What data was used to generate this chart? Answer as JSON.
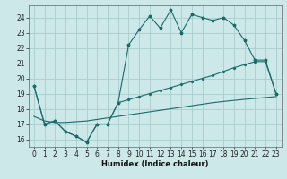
{
  "xlabel": "Humidex (Indice chaleur)",
  "bg_color": "#cce8e8",
  "grid_color": "#aacccc",
  "line_color": "#1a6b6b",
  "xlim": [
    -0.5,
    23.5
  ],
  "ylim": [
    15.5,
    24.8
  ],
  "xticks": [
    0,
    1,
    2,
    3,
    4,
    5,
    6,
    7,
    8,
    9,
    10,
    11,
    12,
    13,
    14,
    15,
    16,
    17,
    18,
    19,
    20,
    21,
    22,
    23
  ],
  "yticks": [
    16,
    17,
    18,
    19,
    20,
    21,
    22,
    23,
    24
  ],
  "line1_y": [
    19.5,
    17.0,
    17.2,
    16.5,
    16.2,
    15.8,
    17.0,
    17.0,
    18.4,
    22.2,
    23.2,
    24.1,
    23.3,
    24.5,
    23.0,
    24.2,
    24.0,
    23.8,
    24.0,
    23.5,
    22.5,
    21.2,
    21.2,
    19.0
  ],
  "line2_y": [
    19.5,
    17.0,
    17.2,
    16.5,
    16.2,
    15.8,
    17.0,
    17.0,
    18.4,
    18.6,
    18.8,
    19.0,
    19.2,
    19.4,
    19.6,
    19.8,
    20.0,
    20.2,
    20.45,
    20.7,
    20.9,
    21.1,
    21.1,
    19.0
  ],
  "line3_y": [
    17.5,
    17.2,
    17.1,
    17.1,
    17.15,
    17.2,
    17.3,
    17.4,
    17.5,
    17.6,
    17.7,
    17.8,
    17.9,
    18.0,
    18.1,
    18.2,
    18.3,
    18.4,
    18.48,
    18.55,
    18.62,
    18.68,
    18.74,
    18.8
  ]
}
